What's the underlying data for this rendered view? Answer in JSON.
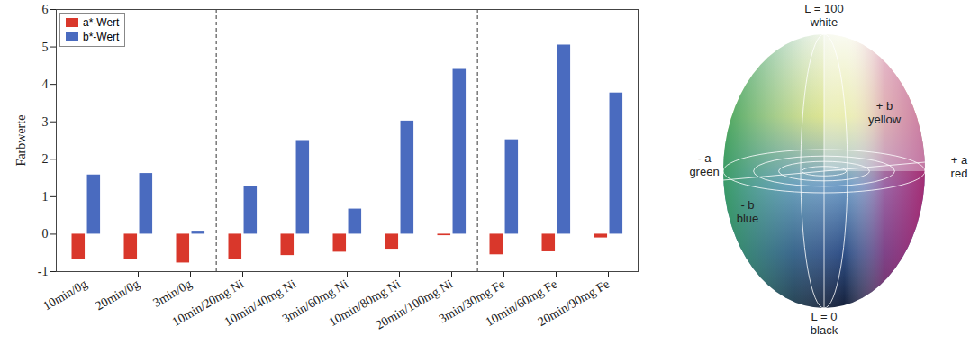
{
  "chart_data": {
    "type": "bar",
    "categories": [
      "10min/0g",
      "20min/0g",
      "3min/0g",
      "10min/20mg Ni",
      "10min/40mg Ni",
      "3min/60mg Ni",
      "10min/80mg Ni",
      "20min/100mg Ni",
      "3min/30mg Fe",
      "10min/60mg Fe",
      "20min/90mg Fe"
    ],
    "series": [
      {
        "name": "a*-Wert",
        "color": "#d9372b",
        "values": [
          -0.68,
          -0.67,
          -0.77,
          -0.67,
          -0.57,
          -0.48,
          -0.4,
          -0.04,
          -0.55,
          -0.47,
          -0.1
        ]
      },
      {
        "name": "b*-Wert",
        "color": "#4a6bbf",
        "values": [
          1.58,
          1.62,
          0.08,
          1.28,
          2.5,
          0.67,
          3.02,
          4.4,
          2.52,
          5.05,
          3.77
        ]
      }
    ],
    "y_label": "Farbwerte",
    "ylim": [
      -1,
      6
    ],
    "yticks": [
      -1,
      0,
      1,
      2,
      3,
      4,
      5,
      6
    ],
    "grid": false,
    "legend": "top-left"
  },
  "color_space": {
    "top": [
      "L = 100",
      "white"
    ],
    "plus_b": [
      "+ b",
      "yellow"
    ],
    "minus_a": [
      "- a",
      "green"
    ],
    "plus_a": [
      "+ a",
      "red"
    ],
    "minus_b": [
      "- b",
      "blue"
    ],
    "bottom": [
      "L = 0",
      "black"
    ]
  }
}
